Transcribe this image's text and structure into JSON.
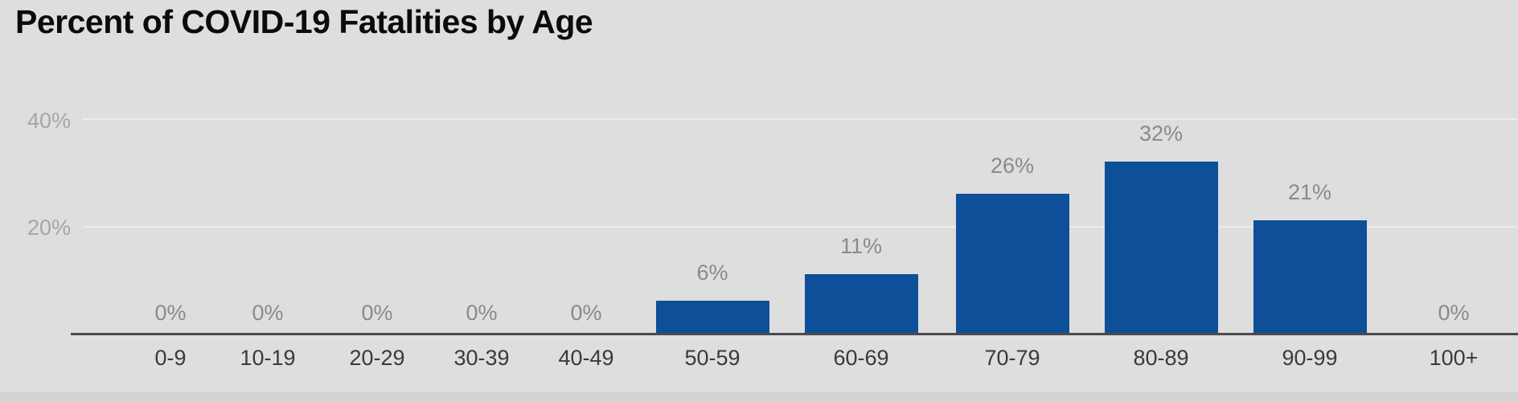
{
  "title": "Percent of COVID-19 Fatalities by Age",
  "colors": {
    "background": "#dedede",
    "bar": "#0e4f9a",
    "axis_line": "#4b4b4b",
    "gridline": "#ececec",
    "y_tick_label": "#a6a6a6",
    "data_label": "#8a8a8a",
    "x_tick_label": "#3a3a3a",
    "title": "#0b0b0b"
  },
  "chart_data": {
    "type": "bar",
    "title": "Percent of COVID-19 Fatalities by Age",
    "categories": [
      "0-9",
      "10-19",
      "20-29",
      "30-39",
      "40-49",
      "50-59",
      "60-69",
      "70-79",
      "80-89",
      "90-99",
      "100+"
    ],
    "values": [
      0,
      0,
      0,
      0,
      0,
      6,
      11,
      26,
      32,
      21,
      0
    ],
    "data_labels": [
      "0%",
      "0%",
      "0%",
      "0%",
      "0%",
      "6%",
      "11%",
      "26%",
      "32%",
      "21%",
      "0%"
    ],
    "xlabel": "",
    "ylabel": "",
    "ylim": [
      0,
      40
    ],
    "y_ticks": [
      "20%",
      "40%"
    ],
    "grid": true,
    "legend_position": "none",
    "bar_color": "#0e4f9a"
  }
}
